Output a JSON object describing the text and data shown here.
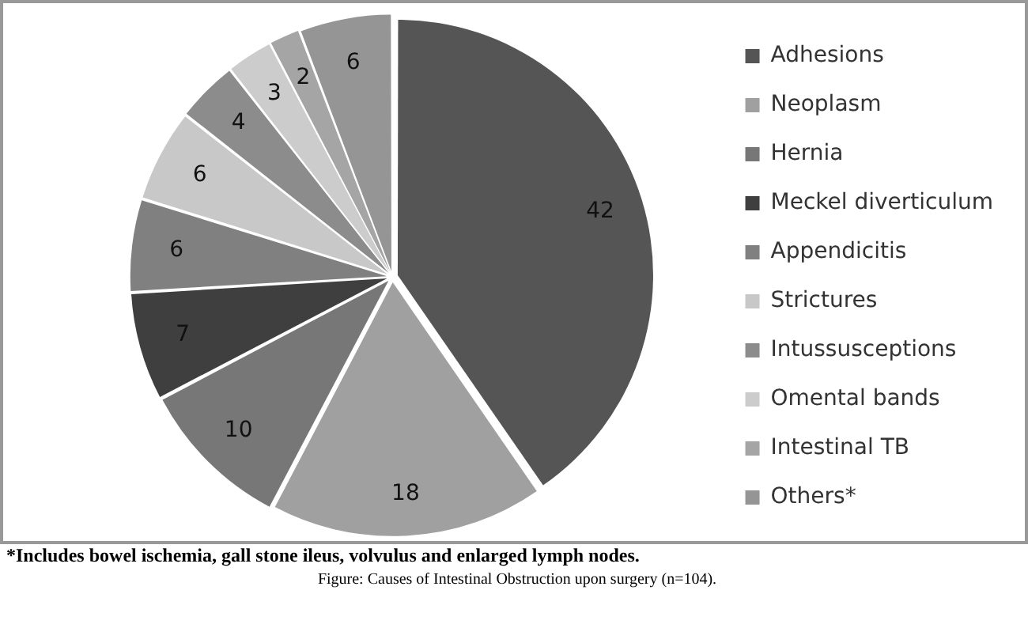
{
  "chart_data": {
    "type": "pie",
    "categories": [
      "Adhesions",
      "Neoplasm",
      "Hernia",
      "Meckel diverticulum",
      "Appendicitis",
      "Strictures",
      "Intussusceptions",
      "Omental bands",
      "Intestinal TB",
      "Others*"
    ],
    "values": [
      42,
      18,
      10,
      7,
      6,
      6,
      4,
      3,
      2,
      6
    ],
    "colors": [
      "#555555",
      "#a0a0a0",
      "#777777",
      "#3f3f3f",
      "#808080",
      "#c8c8c8",
      "#8c8c8c",
      "#cccccc",
      "#a5a5a5",
      "#959595"
    ],
    "data_labels": true,
    "legend": "right",
    "annotations": [
      "*Includes bowel ischemia, gall stone ileus, volvulus and enlarged lymph nodes.",
      "Figure: Causes of Intestinal Obstruction upon surgery (n=104)."
    ]
  }
}
